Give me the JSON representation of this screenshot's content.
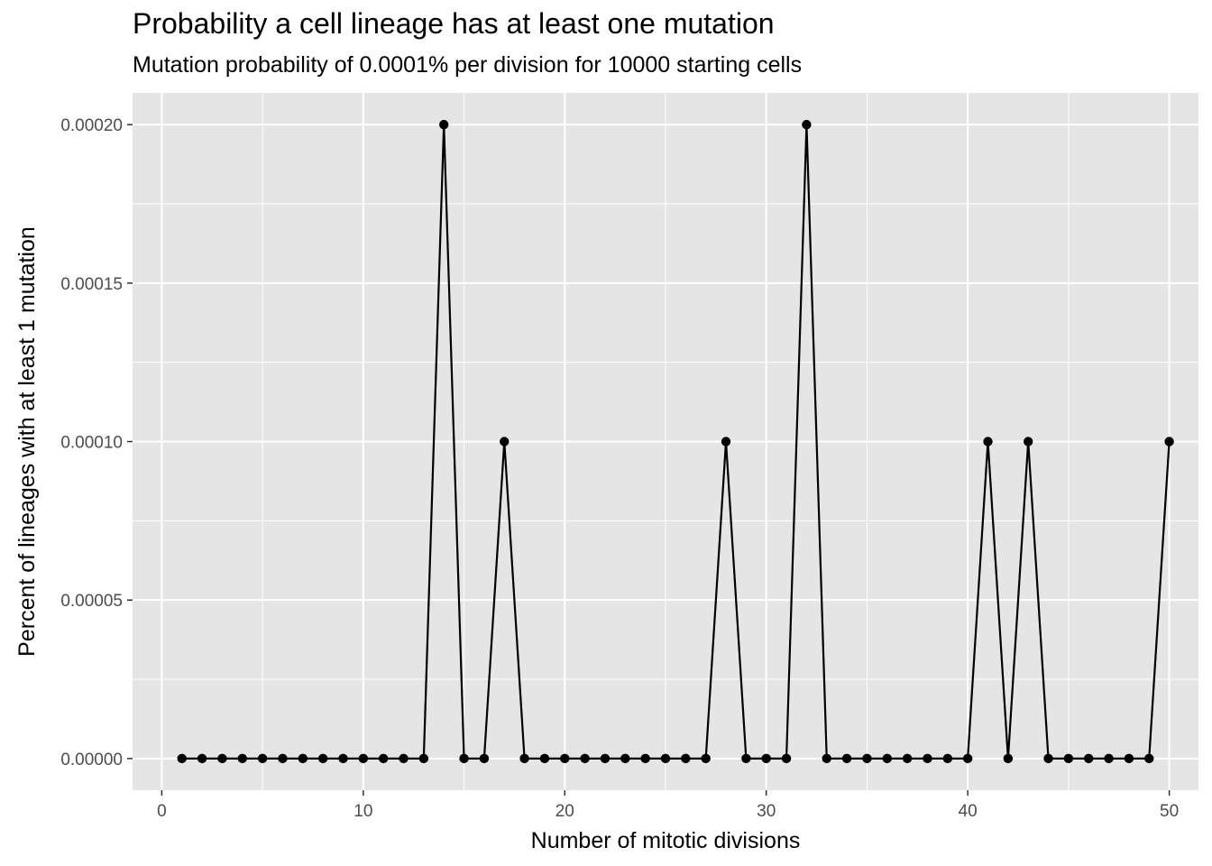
{
  "chart_data": {
    "type": "line",
    "title": "Probability a cell lineage has at least one mutation",
    "subtitle": "Mutation probability of 0.0001% per division for 10000 starting cells",
    "xlabel": "Number of mitotic divisions",
    "ylabel": "Percent of lineages with at least 1 mutation",
    "xlim": [
      -1.45,
      51.45
    ],
    "ylim": [
      -1e-05,
      0.00021
    ],
    "x_ticks": [
      0,
      10,
      20,
      30,
      40,
      50
    ],
    "x_tick_labels": [
      "0",
      "10",
      "20",
      "30",
      "40",
      "50"
    ],
    "y_ticks": [
      0,
      5e-05,
      0.0001,
      0.00015,
      0.0002
    ],
    "y_tick_labels": [
      "0.00000",
      "0.00005",
      "0.00010",
      "0.00015",
      "0.00020"
    ],
    "grid": true,
    "series": [
      {
        "x": [
          1,
          2,
          3,
          4,
          5,
          6,
          7,
          8,
          9,
          10,
          11,
          12,
          13,
          14,
          15,
          16,
          17,
          18,
          19,
          20,
          21,
          22,
          23,
          24,
          25,
          26,
          27,
          28,
          29,
          30,
          31,
          32,
          33,
          34,
          35,
          36,
          37,
          38,
          39,
          40,
          41,
          42,
          43,
          44,
          45,
          46,
          47,
          48,
          49,
          50
        ],
        "values": [
          0,
          0,
          0,
          0,
          0,
          0,
          0,
          0,
          0,
          0,
          0,
          0,
          0,
          0.0002,
          0,
          0,
          0.0001,
          0,
          0,
          0,
          0,
          0,
          0,
          0,
          0,
          0,
          0,
          0.0001,
          0,
          0,
          0,
          0.0002,
          0,
          0,
          0,
          0,
          0,
          0,
          0,
          0,
          0.0001,
          0,
          0.0001,
          0,
          0,
          0,
          0,
          0,
          0,
          0.0001
        ]
      }
    ],
    "colors": {
      "panel": "#e5e5e5",
      "grid": "#ffffff",
      "line": "#000000",
      "tick_text": "#4d4d4d"
    }
  }
}
